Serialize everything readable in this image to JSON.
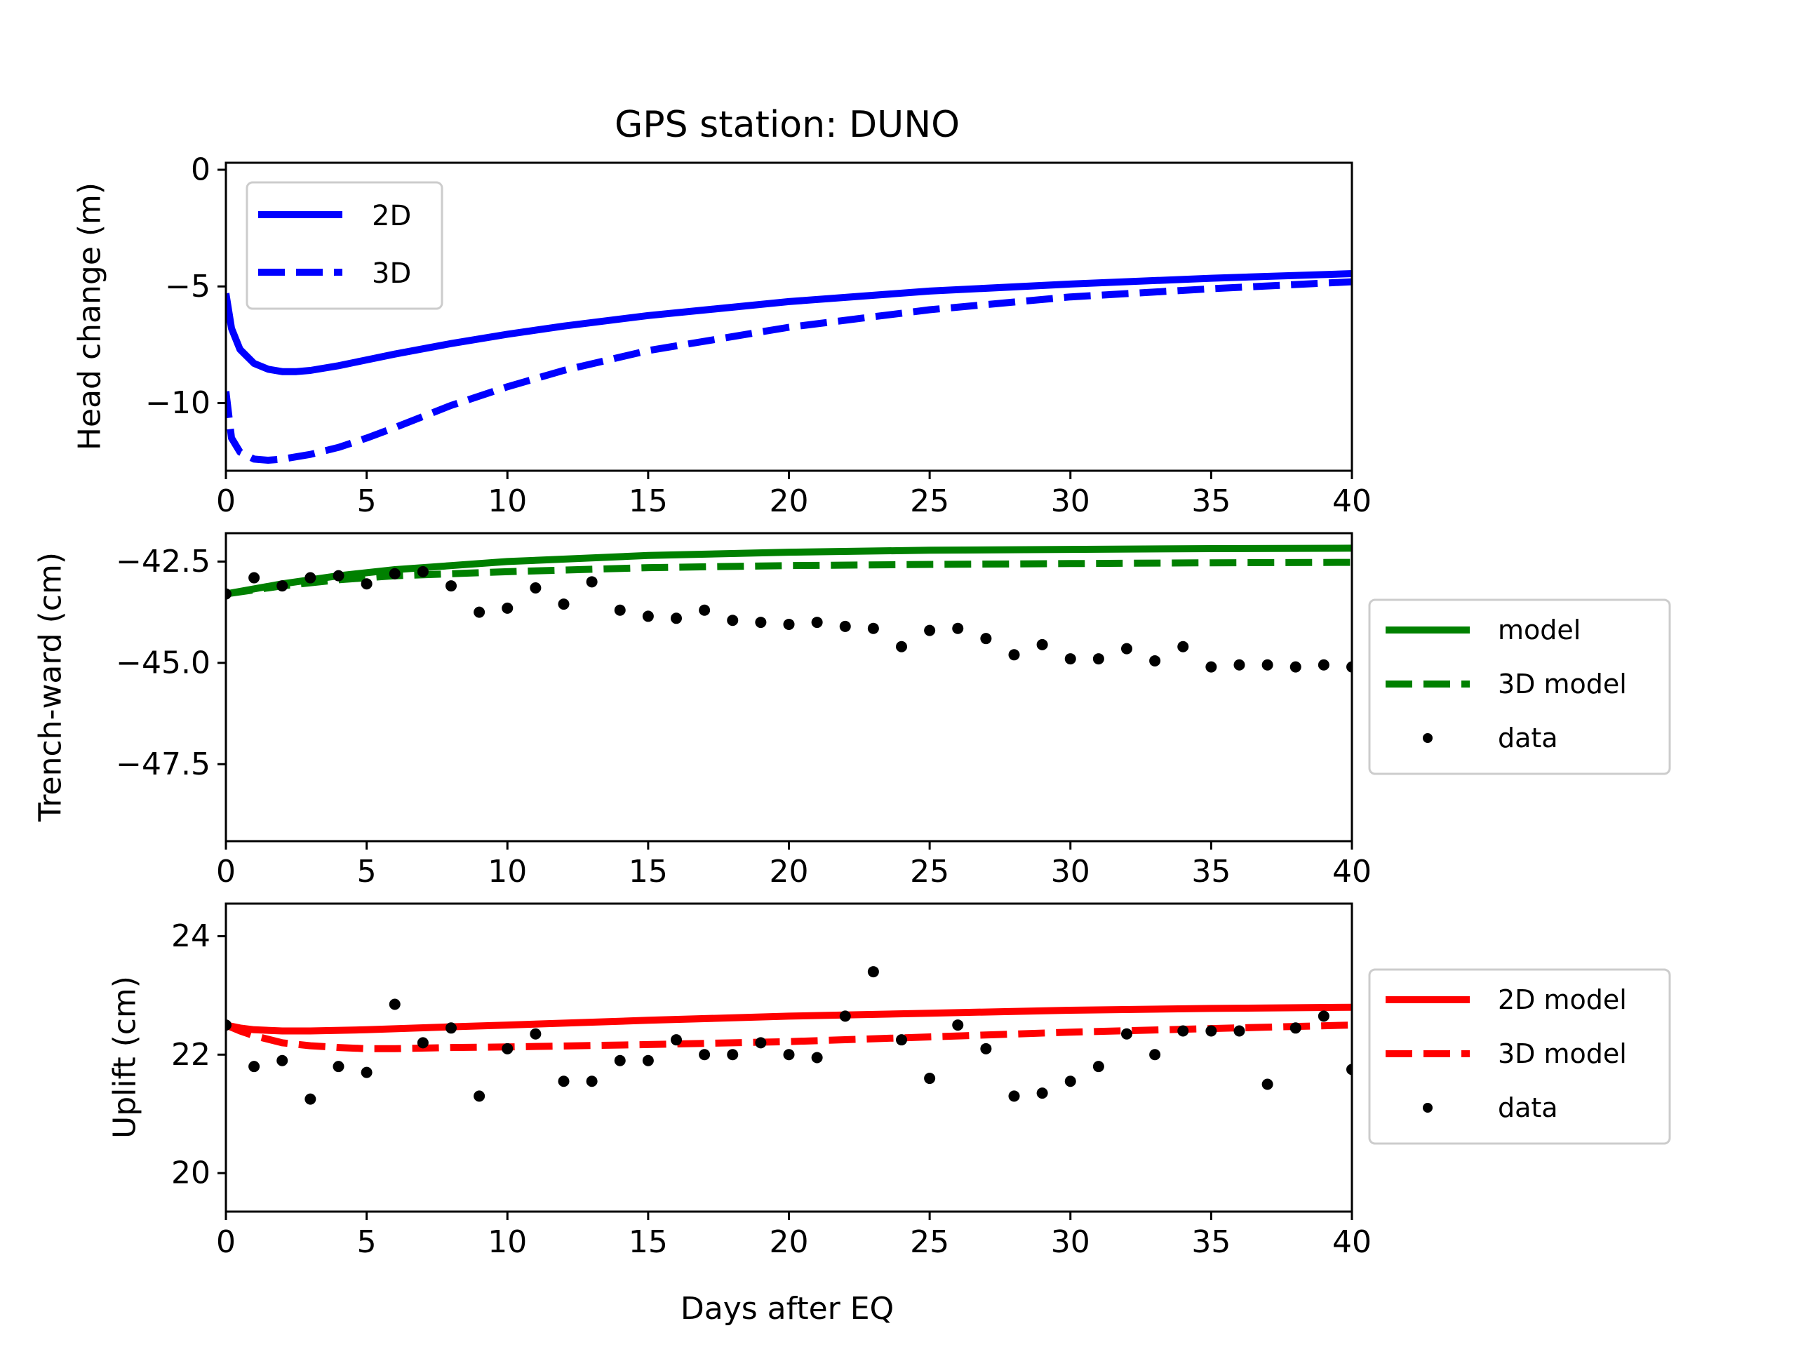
{
  "chart_data": [
    {
      "type": "line",
      "title": "GPS station: DUNO",
      "xlabel": "",
      "ylabel": "Head change (m)",
      "xlim": [
        0,
        40
      ],
      "ylim": [
        -12.9,
        0.3
      ],
      "xticks": [
        0,
        5,
        10,
        15,
        20,
        25,
        30,
        35,
        40
      ],
      "yticks": [
        0,
        -5,
        -10
      ],
      "ytick_labels": [
        "0",
        "−5",
        "−10"
      ],
      "grid": false,
      "legend_position": "upper-left",
      "series": [
        {
          "name": "2D",
          "color": "#0000ff",
          "style": "solid",
          "x": [
            0,
            0.2,
            0.5,
            1,
            1.5,
            2,
            2.5,
            3,
            4,
            5,
            6,
            8,
            10,
            12,
            15,
            20,
            25,
            30,
            35,
            40
          ],
          "y": [
            -5.3,
            -6.8,
            -7.7,
            -8.3,
            -8.55,
            -8.65,
            -8.65,
            -8.6,
            -8.4,
            -8.15,
            -7.9,
            -7.45,
            -7.05,
            -6.7,
            -6.25,
            -5.65,
            -5.2,
            -4.9,
            -4.65,
            -4.45
          ]
        },
        {
          "name": "3D",
          "color": "#0000ff",
          "style": "dashed",
          "x": [
            0,
            0.2,
            0.5,
            1,
            1.5,
            2,
            3,
            4,
            5,
            6,
            8,
            10,
            12,
            15,
            20,
            25,
            30,
            35,
            40
          ],
          "y": [
            -9.5,
            -11.5,
            -12.1,
            -12.4,
            -12.45,
            -12.4,
            -12.2,
            -11.9,
            -11.5,
            -11.05,
            -10.1,
            -9.3,
            -8.6,
            -7.75,
            -6.75,
            -6.0,
            -5.45,
            -5.1,
            -4.8
          ]
        }
      ]
    },
    {
      "type": "line",
      "title": "",
      "xlabel": "",
      "ylabel": "Trench-ward (cm)",
      "xlim": [
        0,
        40
      ],
      "ylim": [
        -49.4,
        -41.8
      ],
      "xticks": [
        0,
        5,
        10,
        15,
        20,
        25,
        30,
        35,
        40
      ],
      "yticks": [
        -42.5,
        -45.0,
        -47.5
      ],
      "ytick_labels": [
        "−42.5",
        "−45.0",
        "−47.5"
      ],
      "grid": false,
      "legend_position": "outside-right",
      "series": [
        {
          "name": "model",
          "color": "#008000",
          "style": "solid",
          "x": [
            0,
            2,
            4,
            6,
            8,
            10,
            15,
            20,
            25,
            30,
            35,
            40
          ],
          "y": [
            -43.3,
            -43.05,
            -42.85,
            -42.7,
            -42.6,
            -42.5,
            -42.35,
            -42.27,
            -42.22,
            -42.2,
            -42.18,
            -42.17
          ]
        },
        {
          "name": "3D model",
          "color": "#008000",
          "style": "dashed",
          "x": [
            0,
            2,
            4,
            6,
            8,
            10,
            15,
            20,
            25,
            30,
            35,
            40
          ],
          "y": [
            -43.3,
            -43.1,
            -42.95,
            -42.85,
            -42.8,
            -42.75,
            -42.65,
            -42.6,
            -42.57,
            -42.55,
            -42.53,
            -42.52
          ]
        },
        {
          "name": "data",
          "color": "#000000",
          "style": "markers",
          "x": [
            0,
            1,
            2,
            3,
            4,
            5,
            6,
            7,
            8,
            9,
            10,
            11,
            12,
            13,
            14,
            15,
            16,
            17,
            18,
            19,
            20,
            21,
            22,
            23,
            24,
            25,
            26,
            27,
            28,
            29,
            30,
            31,
            32,
            33,
            34,
            35,
            36,
            37,
            38,
            39,
            40
          ],
          "y": [
            -43.3,
            -42.9,
            -43.1,
            -42.9,
            -42.85,
            -43.05,
            -42.8,
            -42.75,
            -43.1,
            -43.75,
            -43.65,
            -43.15,
            -43.55,
            -43.0,
            -43.7,
            -43.85,
            -43.9,
            -43.7,
            -43.95,
            -44.0,
            -44.05,
            -44.0,
            -44.1,
            -44.15,
            -44.6,
            -44.2,
            -44.15,
            -44.4,
            -44.8,
            -44.55,
            -44.9,
            -44.9,
            -44.65,
            -44.95,
            -44.6,
            -45.1,
            -45.05,
            -45.05,
            -45.1,
            -45.05,
            -45.1
          ]
        }
      ]
    },
    {
      "type": "line",
      "title": "",
      "xlabel": "Days after EQ",
      "ylabel": "Uplift (cm)",
      "xlim": [
        0,
        40
      ],
      "ylim": [
        19.35,
        24.55
      ],
      "xticks": [
        0,
        5,
        10,
        15,
        20,
        25,
        30,
        35,
        40
      ],
      "yticks": [
        20,
        22,
        24
      ],
      "ytick_labels": [
        "20",
        "22",
        "24"
      ],
      "grid": false,
      "legend_position": "outside-right",
      "series": [
        {
          "name": "2D model",
          "color": "#ff0000",
          "style": "solid",
          "x": [
            0,
            0.5,
            1,
            2,
            3,
            5,
            8,
            10,
            15,
            20,
            25,
            30,
            35,
            40
          ],
          "y": [
            22.5,
            22.45,
            22.42,
            22.4,
            22.4,
            22.42,
            22.47,
            22.5,
            22.58,
            22.65,
            22.7,
            22.75,
            22.78,
            22.8
          ]
        },
        {
          "name": "3D model",
          "color": "#ff0000",
          "style": "dashed",
          "x": [
            0,
            0.5,
            1,
            2,
            3,
            4,
            5,
            6,
            8,
            10,
            15,
            20,
            25,
            30,
            35,
            40
          ],
          "y": [
            22.5,
            22.4,
            22.32,
            22.2,
            22.15,
            22.12,
            22.1,
            22.1,
            22.12,
            22.13,
            22.17,
            22.22,
            22.3,
            22.38,
            22.44,
            22.5
          ]
        },
        {
          "name": "data",
          "color": "#000000",
          "style": "markers",
          "x": [
            0,
            1,
            2,
            3,
            4,
            5,
            6,
            7,
            8,
            9,
            10,
            11,
            12,
            13,
            14,
            15,
            16,
            17,
            18,
            19,
            20,
            21,
            22,
            23,
            24,
            25,
            26,
            27,
            28,
            29,
            30,
            31,
            32,
            33,
            34,
            35,
            36,
            37,
            38,
            39,
            40
          ],
          "y": [
            22.5,
            21.8,
            21.9,
            21.25,
            21.8,
            21.7,
            22.85,
            22.2,
            22.45,
            21.3,
            22.1,
            22.35,
            21.55,
            21.55,
            21.9,
            21.9,
            22.25,
            22.0,
            22.0,
            22.2,
            22.0,
            21.95,
            22.65,
            23.4,
            22.25,
            21.6,
            22.5,
            22.1,
            21.3,
            21.35,
            21.55,
            21.8,
            22.35,
            22.0,
            22.4,
            22.4,
            22.4,
            21.5,
            22.45,
            22.65,
            21.75
          ]
        }
      ]
    }
  ]
}
